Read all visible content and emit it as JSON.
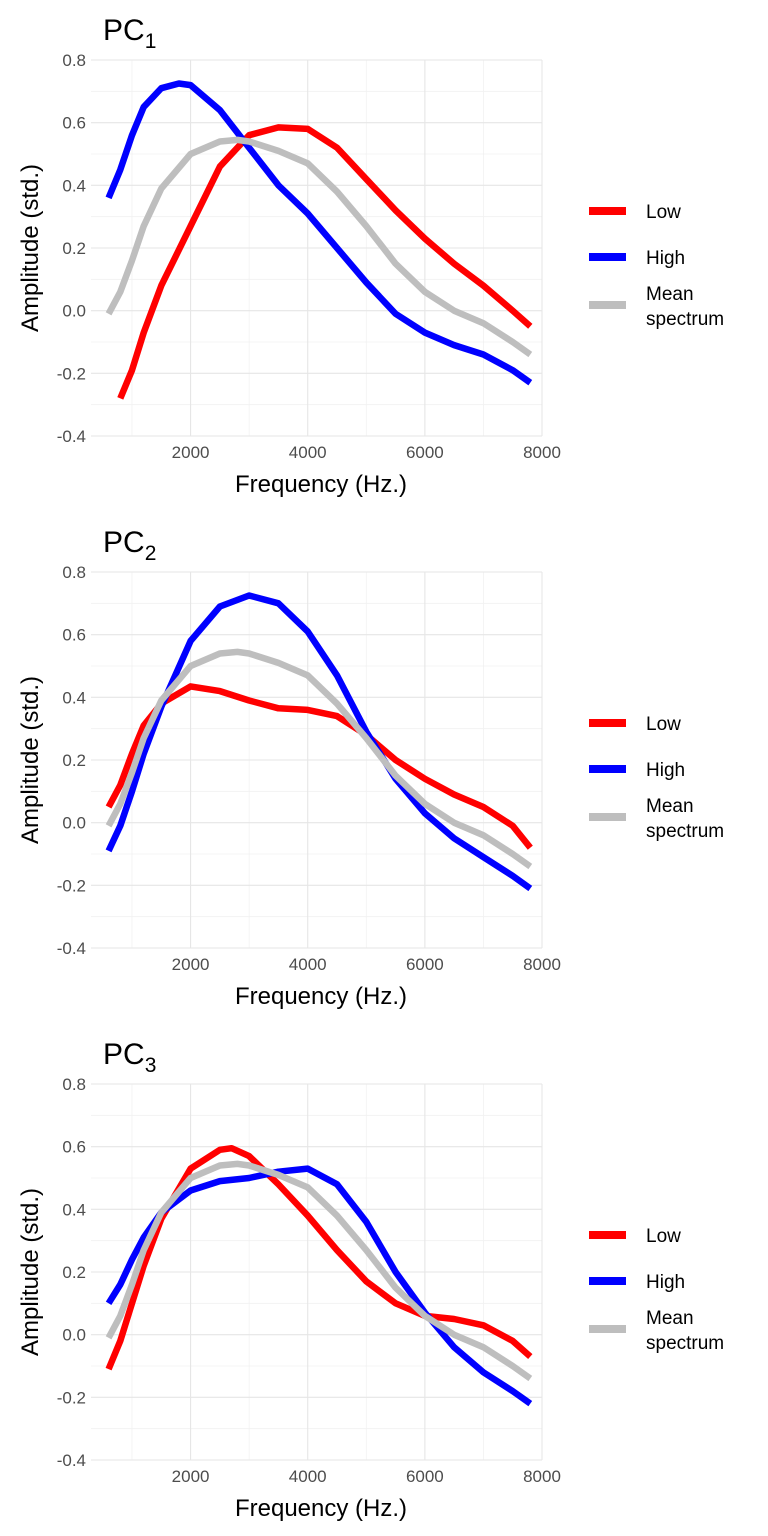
{
  "chart_data": [
    {
      "type": "line",
      "title": "PC",
      "title_subscript": "1",
      "xlabel": "Frequency (Hz.)",
      "ylabel": "Amplitude (std.)",
      "xlim": [
        300,
        8000
      ],
      "ylim": [
        -0.4,
        0.8
      ],
      "xticks": [
        2000,
        4000,
        6000,
        8000
      ],
      "yticks": [
        -0.4,
        -0.2,
        0.0,
        0.2,
        0.4,
        0.6,
        0.8
      ],
      "grid": true,
      "legend_position": "right",
      "series": [
        {
          "name": "Low",
          "color": "#FF0000",
          "x": [
            800,
            1000,
            1200,
            1500,
            2000,
            2500,
            3000,
            3500,
            4000,
            4500,
            5000,
            5500,
            6000,
            6500,
            7000,
            7500,
            7800
          ],
          "y": [
            -0.28,
            -0.19,
            -0.07,
            0.08,
            0.27,
            0.46,
            0.56,
            0.585,
            0.58,
            0.52,
            0.42,
            0.32,
            0.23,
            0.15,
            0.08,
            0.0,
            -0.05
          ]
        },
        {
          "name": "High",
          "color": "#0000FF",
          "x": [
            600,
            800,
            1000,
            1200,
            1500,
            1800,
            2000,
            2500,
            3000,
            3500,
            4000,
            4500,
            5000,
            5500,
            6000,
            6500,
            7000,
            7500,
            7800
          ],
          "y": [
            0.36,
            0.45,
            0.56,
            0.65,
            0.71,
            0.725,
            0.72,
            0.64,
            0.52,
            0.4,
            0.31,
            0.2,
            0.09,
            -0.01,
            -0.07,
            -0.11,
            -0.14,
            -0.19,
            -0.23
          ]
        },
        {
          "name": "Mean spectrum",
          "color": "#BEBEBE",
          "x": [
            600,
            800,
            1000,
            1200,
            1500,
            2000,
            2500,
            2800,
            3000,
            3500,
            4000,
            4500,
            5000,
            5500,
            6000,
            6500,
            7000,
            7500,
            7800
          ],
          "y": [
            -0.01,
            0.06,
            0.16,
            0.27,
            0.39,
            0.5,
            0.54,
            0.545,
            0.54,
            0.51,
            0.47,
            0.38,
            0.27,
            0.15,
            0.06,
            0.0,
            -0.04,
            -0.1,
            -0.14
          ]
        }
      ]
    },
    {
      "type": "line",
      "title": "PC",
      "title_subscript": "2",
      "xlabel": "Frequency (Hz.)",
      "ylabel": "Amplitude (std.)",
      "xlim": [
        300,
        8000
      ],
      "ylim": [
        -0.4,
        0.8
      ],
      "xticks": [
        2000,
        4000,
        6000,
        8000
      ],
      "yticks": [
        -0.4,
        -0.2,
        0.0,
        0.2,
        0.4,
        0.6,
        0.8
      ],
      "grid": true,
      "legend_position": "right",
      "series": [
        {
          "name": "Low",
          "color": "#FF0000",
          "x": [
            600,
            800,
            1000,
            1200,
            1500,
            2000,
            2500,
            3000,
            3500,
            4000,
            4500,
            5000,
            5500,
            6000,
            6500,
            7000,
            7500,
            7800
          ],
          "y": [
            0.05,
            0.12,
            0.22,
            0.31,
            0.38,
            0.435,
            0.42,
            0.39,
            0.365,
            0.36,
            0.34,
            0.28,
            0.2,
            0.14,
            0.09,
            0.05,
            -0.01,
            -0.08
          ]
        },
        {
          "name": "High",
          "color": "#0000FF",
          "x": [
            600,
            800,
            1000,
            1200,
            1500,
            2000,
            2500,
            3000,
            3500,
            4000,
            4500,
            5000,
            5500,
            6000,
            6500,
            7000,
            7500,
            7800
          ],
          "y": [
            -0.09,
            -0.01,
            0.1,
            0.22,
            0.37,
            0.58,
            0.69,
            0.725,
            0.7,
            0.61,
            0.47,
            0.29,
            0.14,
            0.03,
            -0.05,
            -0.11,
            -0.17,
            -0.21
          ]
        },
        {
          "name": "Mean spectrum",
          "color": "#BEBEBE",
          "x": [
            600,
            800,
            1000,
            1200,
            1500,
            2000,
            2500,
            2800,
            3000,
            3500,
            4000,
            4500,
            5000,
            5500,
            6000,
            6500,
            7000,
            7500,
            7800
          ],
          "y": [
            -0.01,
            0.06,
            0.16,
            0.27,
            0.39,
            0.5,
            0.54,
            0.545,
            0.54,
            0.51,
            0.47,
            0.38,
            0.27,
            0.15,
            0.06,
            0.0,
            -0.04,
            -0.1,
            -0.14
          ]
        }
      ]
    },
    {
      "type": "line",
      "title": "PC",
      "title_subscript": "3",
      "xlabel": "Frequency (Hz.)",
      "ylabel": "Amplitude (std.)",
      "xlim": [
        300,
        8000
      ],
      "ylim": [
        -0.4,
        0.8
      ],
      "xticks": [
        2000,
        4000,
        6000,
        8000
      ],
      "yticks": [
        -0.4,
        -0.2,
        0.0,
        0.2,
        0.4,
        0.6,
        0.8
      ],
      "grid": true,
      "legend_position": "right",
      "series": [
        {
          "name": "Low",
          "color": "#FF0000",
          "x": [
            600,
            800,
            1000,
            1200,
            1500,
            2000,
            2500,
            2700,
            3000,
            3500,
            4000,
            4500,
            5000,
            5500,
            6000,
            6500,
            7000,
            7500,
            7800
          ],
          "y": [
            -0.11,
            -0.02,
            0.1,
            0.22,
            0.37,
            0.53,
            0.59,
            0.595,
            0.57,
            0.48,
            0.38,
            0.27,
            0.17,
            0.1,
            0.06,
            0.05,
            0.03,
            -0.02,
            -0.07
          ]
        },
        {
          "name": "High",
          "color": "#0000FF",
          "x": [
            600,
            800,
            1000,
            1200,
            1500,
            2000,
            2500,
            3000,
            3500,
            4000,
            4500,
            5000,
            5500,
            6000,
            6500,
            7000,
            7500,
            7800
          ],
          "y": [
            0.1,
            0.16,
            0.24,
            0.31,
            0.39,
            0.46,
            0.49,
            0.5,
            0.52,
            0.53,
            0.48,
            0.36,
            0.2,
            0.07,
            -0.04,
            -0.12,
            -0.18,
            -0.22
          ]
        },
        {
          "name": "Mean spectrum",
          "color": "#BEBEBE",
          "x": [
            600,
            800,
            1000,
            1200,
            1500,
            2000,
            2500,
            2800,
            3000,
            3500,
            4000,
            4500,
            5000,
            5500,
            6000,
            6500,
            7000,
            7500,
            7800
          ],
          "y": [
            -0.01,
            0.06,
            0.16,
            0.27,
            0.39,
            0.5,
            0.54,
            0.545,
            0.54,
            0.51,
            0.47,
            0.38,
            0.27,
            0.15,
            0.06,
            0.0,
            -0.04,
            -0.1,
            -0.14
          ]
        }
      ]
    }
  ],
  "legend": {
    "low_label": "Low",
    "high_label": "High",
    "mean_label_line1": "Mean",
    "mean_label_line2": "spectrum"
  }
}
